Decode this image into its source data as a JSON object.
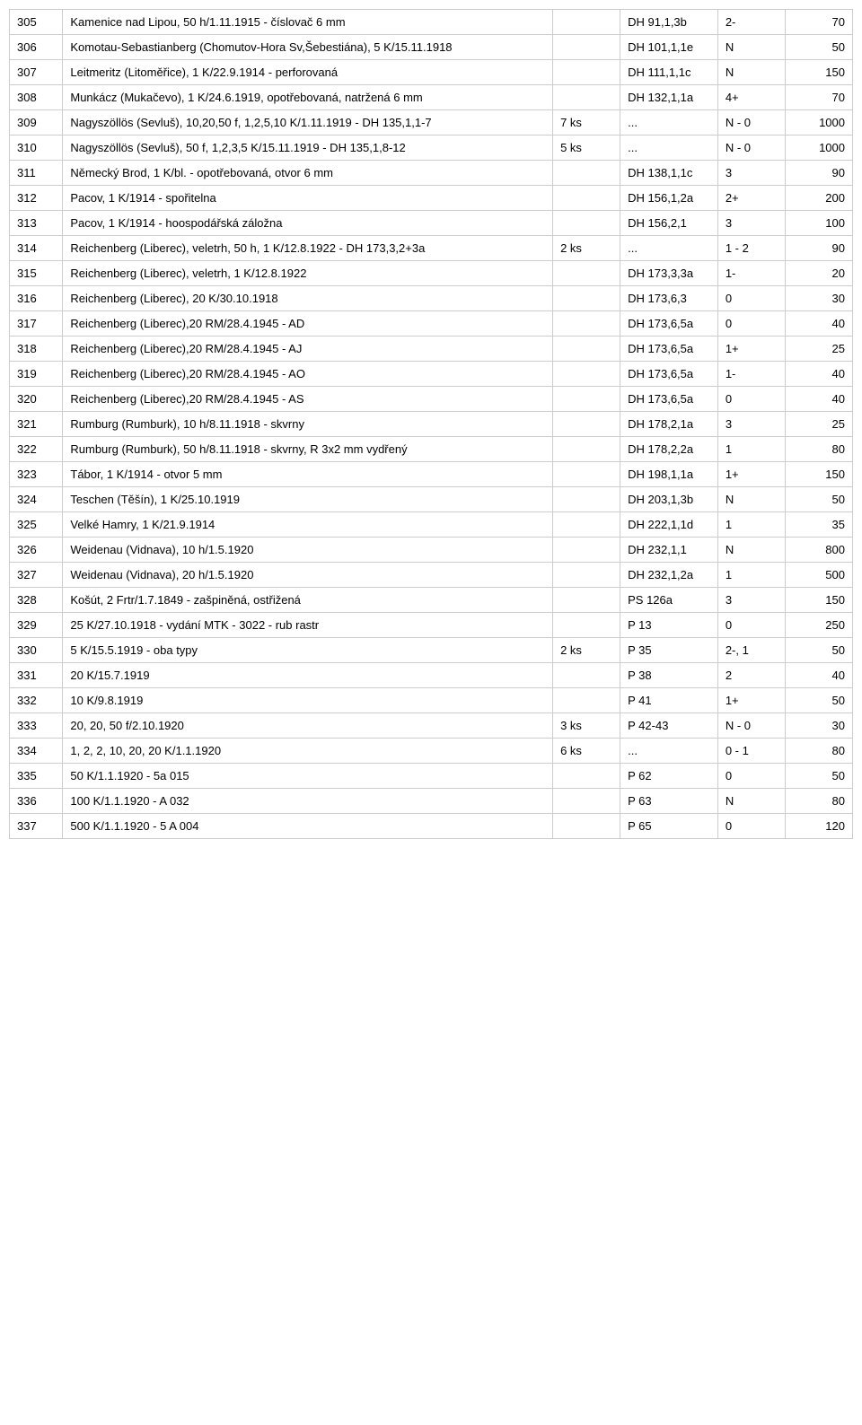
{
  "rows": [
    {
      "n": "305",
      "desc": "Kamenice nad Lipou, 50 h/1.11.1915 - číslovač 6 mm",
      "qty": "",
      "code": "DH 91,1,3b",
      "grade": "2-",
      "price": "70"
    },
    {
      "n": "306",
      "desc": "Komotau-Sebastianberg (Chomutov-Hora Sv,Šebestiána), 5 K/15.11.1918",
      "qty": "",
      "code": "DH 101,1,1e",
      "grade": "N",
      "price": "50"
    },
    {
      "n": "307",
      "desc": "Leitmeritz (Litoměřice), 1 K/22.9.1914 - perforovaná",
      "qty": "",
      "code": "DH 111,1,1c",
      "grade": "N",
      "price": "150"
    },
    {
      "n": "308",
      "desc": "Munkácz (Mukačevo), 1 K/24.6.1919, opotřebovaná, natržená 6 mm",
      "qty": "",
      "code": "DH 132,1,1a",
      "grade": "4+",
      "price": "70"
    },
    {
      "n": "309",
      "desc": "Nagyszöllös (Sevluš), 10,20,50 f, 1,2,5,10 K/1.11.1919 - DH 135,1,1-7",
      "qty": "7 ks",
      "code": "...",
      "grade": "N - 0",
      "price": "1000"
    },
    {
      "n": "310",
      "desc": "Nagyszöllös (Sevluš), 50 f, 1,2,3,5 K/15.11.1919 - DH 135,1,8-12",
      "qty": "5 ks",
      "code": "...",
      "grade": "N - 0",
      "price": "1000"
    },
    {
      "n": "311",
      "desc": "Německý Brod, 1 K/bl. - opotřebovaná, otvor 6 mm",
      "qty": "",
      "code": "DH 138,1,1c",
      "grade": "3",
      "price": "90"
    },
    {
      "n": "312",
      "desc": "Pacov, 1 K/1914 - spořitelna",
      "qty": "",
      "code": "DH 156,1,2a",
      "grade": "2+",
      "price": "200"
    },
    {
      "n": "313",
      "desc": "Pacov, 1 K/1914 - hoospodářská záložna",
      "qty": "",
      "code": "DH 156,2,1",
      "grade": "3",
      "price": "100"
    },
    {
      "n": "314",
      "desc": "Reichenberg (Liberec), veletrh,  50 h, 1 K/12.8.1922 - DH 173,3,2+3a",
      "qty": "2 ks",
      "code": "...",
      "grade": "1 - 2",
      "price": "90"
    },
    {
      "n": "315",
      "desc": "Reichenberg (Liberec), veletrh, 1 K/12.8.1922",
      "qty": "",
      "code": "DH 173,3,3a",
      "grade": "1-",
      "price": "20"
    },
    {
      "n": "316",
      "desc": "Reichenberg (Liberec), 20 K/30.10.1918",
      "qty": "",
      "code": "DH 173,6,3",
      "grade": "0",
      "price": "30"
    },
    {
      "n": "317",
      "desc": "Reichenberg (Liberec),20 RM/28.4.1945 - AD",
      "qty": "",
      "code": "DH 173,6,5a",
      "grade": "0",
      "price": "40"
    },
    {
      "n": "318",
      "desc": "Reichenberg (Liberec),20 RM/28.4.1945 - AJ",
      "qty": "",
      "code": "DH 173,6,5a",
      "grade": "1+",
      "price": "25"
    },
    {
      "n": "319",
      "desc": "Reichenberg (Liberec),20 RM/28.4.1945 - AO",
      "qty": "",
      "code": "DH 173,6,5a",
      "grade": "1-",
      "price": "40"
    },
    {
      "n": "320",
      "desc": "Reichenberg (Liberec),20 RM/28.4.1945 - AS",
      "qty": "",
      "code": "DH 173,6,5a",
      "grade": "0",
      "price": "40"
    },
    {
      "n": "321",
      "desc": "Rumburg (Rumburk), 10 h/8.11.1918 - skvrny",
      "qty": "",
      "code": "DH 178,2,1a",
      "grade": "3",
      "price": "25"
    },
    {
      "n": "322",
      "desc": "Rumburg (Rumburk), 50 h/8.11.1918 - skvrny, R 3x2 mm vydřený",
      "qty": "",
      "code": "DH 178,2,2a",
      "grade": "1",
      "price": "80"
    },
    {
      "n": "323",
      "desc": "Tábor, 1 K/1914 - otvor 5 mm",
      "qty": "",
      "code": "DH 198,1,1a",
      "grade": "1+",
      "price": "150"
    },
    {
      "n": "324",
      "desc": "Teschen (Těšín), 1 K/25.10.1919",
      "qty": "",
      "code": "DH 203,1,3b",
      "grade": "N",
      "price": "50"
    },
    {
      "n": "325",
      "desc": "Velké Hamry, 1 K/21.9.1914",
      "qty": "",
      "code": "DH 222,1,1d",
      "grade": "1",
      "price": "35"
    },
    {
      "n": "326",
      "desc": "Weidenau (Vidnava), 10 h/1.5.1920",
      "qty": "",
      "code": "DH 232,1,1",
      "grade": "N",
      "price": "800"
    },
    {
      "n": "327",
      "desc": "Weidenau (Vidnava), 20 h/1.5.1920",
      "qty": "",
      "code": "DH 232,1,2a",
      "grade": "1",
      "price": "500"
    },
    {
      "n": "328",
      "desc": "Košút, 2 Frtr/1.7.1849 - zašpiněná, ostřižená",
      "qty": "",
      "code": "PS 126a",
      "grade": "3",
      "price": "150"
    },
    {
      "n": "329",
      "desc": "25 K/27.10.1918 - vydání MTK - 3022 - rub rastr",
      "qty": "",
      "code": "P 13",
      "grade": "0",
      "price": "250"
    },
    {
      "n": "330",
      "desc": "5 K/15.5.1919 - oba typy",
      "qty": "2 ks",
      "code": "P 35",
      "grade": "2-, 1",
      "price": "50"
    },
    {
      "n": "331",
      "desc": "20 K/15.7.1919",
      "qty": "",
      "code": "P 38",
      "grade": "2",
      "price": "40"
    },
    {
      "n": "332",
      "desc": "10 K/9.8.1919",
      "qty": "",
      "code": "P 41",
      "grade": "1+",
      "price": "50"
    },
    {
      "n": "333",
      "desc": "20, 20, 50 f/2.10.1920",
      "qty": "3 ks",
      "code": "P 42-43",
      "grade": "N - 0",
      "price": "30"
    },
    {
      "n": "334",
      "desc": "1, 2, 2, 10, 20, 20 K/1.1.1920",
      "qty": "6 ks",
      "code": "...",
      "grade": "0 - 1",
      "price": "80"
    },
    {
      "n": "335",
      "desc": "50 K/1.1.1920 - 5a 015",
      "qty": "",
      "code": "P 62",
      "grade": "0",
      "price": "50"
    },
    {
      "n": "336",
      "desc": "100 K/1.1.1920 - A 032",
      "qty": "",
      "code": "P 63",
      "grade": "N",
      "price": "80"
    },
    {
      "n": "337",
      "desc": "500 K/1.1.1920 - 5 A 004",
      "qty": "",
      "code": "P 65",
      "grade": "0",
      "price": "120"
    }
  ]
}
